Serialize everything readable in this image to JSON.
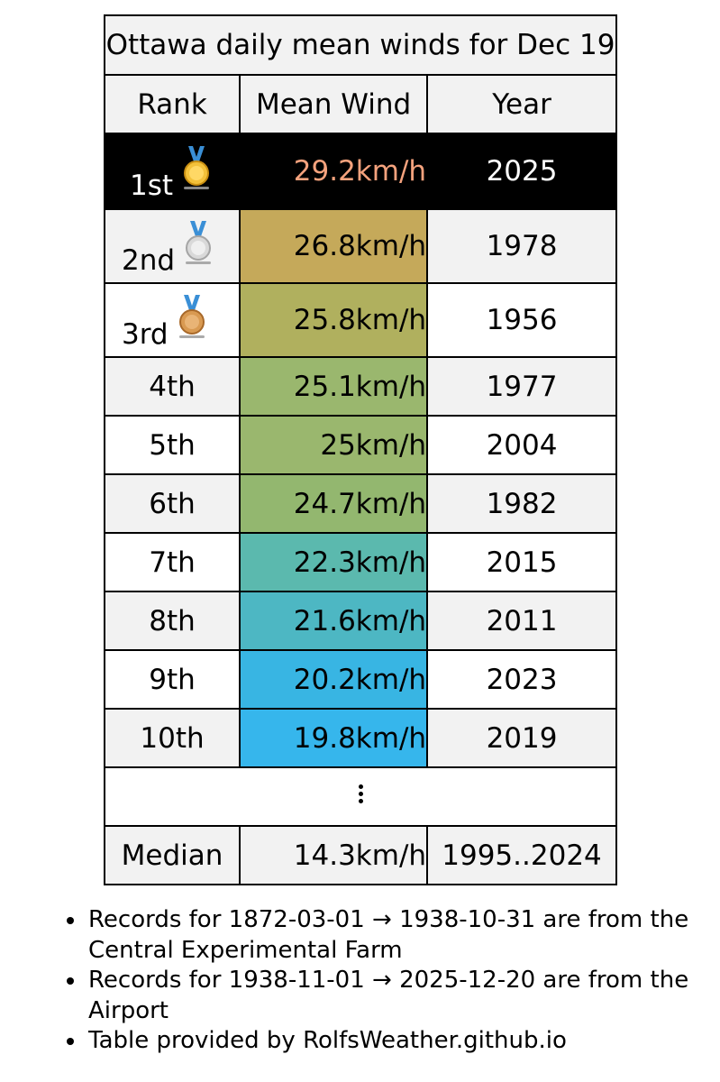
{
  "table": {
    "title": "Ottawa daily mean winds for Dec 19",
    "headers": {
      "rank": "Rank",
      "wind": "Mean Wind",
      "year": "Year"
    },
    "rows": [
      {
        "rank": "1st",
        "wind": "29.2km/h",
        "year": "2025",
        "medal": "gold-medal-icon",
        "color": "#000000"
      },
      {
        "rank": "2nd",
        "wind": "26.8km/h",
        "year": "1978",
        "medal": "silver-medal-icon",
        "color": "#c5a95a"
      },
      {
        "rank": "3rd",
        "wind": "25.8km/h",
        "year": "1956",
        "medal": "bronze-medal-icon",
        "color": "#b0b05e"
      },
      {
        "rank": "4th",
        "wind": "25.1km/h",
        "year": "1977",
        "color": "#9ab76e"
      },
      {
        "rank": "5th",
        "wind": "25km/h",
        "year": "2004",
        "color": "#9ab76e"
      },
      {
        "rank": "6th",
        "wind": "24.7km/h",
        "year": "1982",
        "color": "#93b76f"
      },
      {
        "rank": "7th",
        "wind": "22.3km/h",
        "year": "2015",
        "color": "#5bb9ae"
      },
      {
        "rank": "8th",
        "wind": "21.6km/h",
        "year": "2011",
        "color": "#4db7c3"
      },
      {
        "rank": "9th",
        "wind": "20.2km/h",
        "year": "2023",
        "color": "#38b5e3"
      },
      {
        "rank": "10th",
        "wind": "19.8km/h",
        "year": "2019",
        "color": "#36b6ec"
      }
    ],
    "median": {
      "label": "Median",
      "wind": "14.3km/h",
      "years": "1995..2024"
    }
  },
  "notes": [
    "Records for 1872-03-01 → 1938-10-31 are from the Central Experimental Farm",
    "Records for 1938-11-01 → 2025-12-20 are from the Airport",
    "Table provided by RolfsWeather.github.io"
  ]
}
